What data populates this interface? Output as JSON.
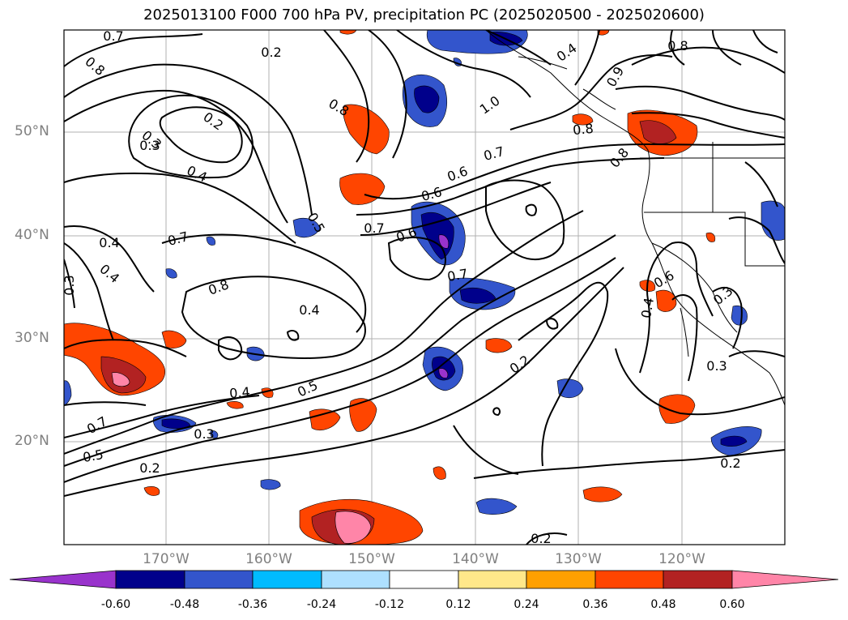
{
  "title": "2025013100 F000 700 hPa PV, precipitation PC (2025020500 - 2025020600)",
  "lat_labels": [
    "50°N",
    "40°N",
    "30°N",
    "20°N"
  ],
  "lon_labels": [
    "170°W",
    "160°W",
    "150°W",
    "140°W",
    "130°W",
    "120°W"
  ],
  "colorbar": {
    "ticks": [
      "-0.60",
      "-0.48",
      "-0.36",
      "-0.24",
      "-0.12",
      "0.12",
      "0.24",
      "0.36",
      "0.48",
      "0.60"
    ],
    "colors": [
      "#9933cc",
      "#00008b",
      "#3355cc",
      "#00bbff",
      "#aee0ff",
      "#ffffff",
      "#ffe88a",
      "#ffa000",
      "#ff4500",
      "#b22222",
      "#ff85a8"
    ]
  },
  "contour_labels": [
    "0.7",
    "0.8",
    "0.2",
    "0.3",
    "0.4",
    "0.5",
    "0.6",
    "0.7",
    "0.8",
    "1.0",
    "0.6",
    "0.7",
    "0.8",
    "0.4",
    "0.6",
    "0.8",
    "0.4",
    "0.5",
    "0.7",
    "0.7",
    "0.8",
    "0.6",
    "0.4",
    "0.3",
    "0.2",
    "0.5",
    "0.7",
    "0.2",
    "0.3",
    "0.4",
    "0.3",
    "0.2",
    "0.2",
    "0.2",
    "0.4",
    "0.3",
    "0.3",
    "0.8",
    "0.9",
    "0.4"
  ],
  "contour_colors": {
    "line": "#000000"
  }
}
